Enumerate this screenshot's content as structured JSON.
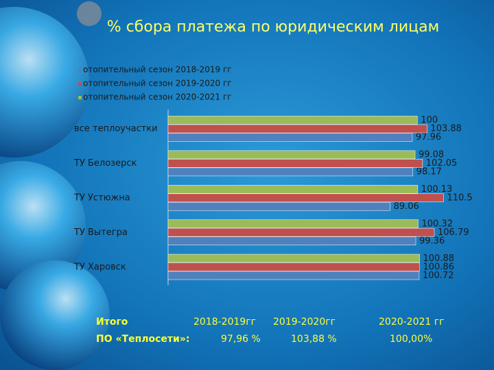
{
  "chart_data": {
    "type": "hbar",
    "title": "% сбора платежа по юридическим лицам",
    "categories": [
      "все теплоучастки",
      "ТУ Белозерск",
      "ТУ Устюжна",
      "ТУ Вытегра",
      "ТУ Харовск"
    ],
    "series": [
      {
        "name": "отопительный сезон 2018-2019 гг",
        "color": "#4f81bd",
        "values": [
          97.96,
          98.17,
          89.06,
          99.36,
          100.72
        ]
      },
      {
        "name": "отопительный сезон 2019-2020 гг",
        "color": "#c0504d",
        "values": [
          103.88,
          102.05,
          110.5,
          106.79,
          100.86
        ]
      },
      {
        "name": "отопительный сезон 2020-2021 гг",
        "color": "#9bbb59",
        "values": [
          100,
          99.08,
          100.13,
          100.32,
          100.88
        ]
      }
    ],
    "xlim": [
      0,
      120
    ]
  },
  "summary": {
    "row_labels": [
      "Итого",
      "ПО «Теплосети»:"
    ],
    "columns": [
      "2018-2019гг",
      "2019-2020гг",
      "2020-2021 гг"
    ],
    "values": [
      "97,96 %",
      "103,88 %",
      "100,00%"
    ]
  }
}
